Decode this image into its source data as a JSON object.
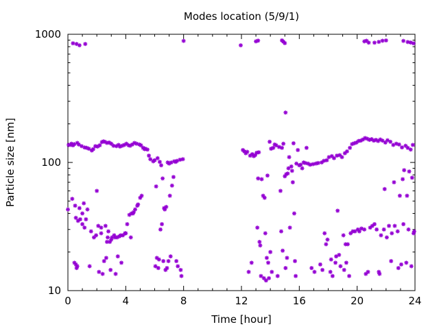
{
  "chart_data": {
    "type": "scatter",
    "title": "Modes location (5/9/1)",
    "xlabel": "Time [hour]",
    "ylabel": "Particle size [nm]",
    "xlim": [
      0,
      24
    ],
    "ylim": [
      10,
      1000
    ],
    "yscale": "log",
    "grid": false,
    "legend": "none",
    "x_ticks": [
      0,
      4,
      8,
      12,
      16,
      20,
      24
    ],
    "y_ticks": [
      10,
      100,
      1000
    ],
    "x_tick_labels": [
      "0",
      "4",
      "8",
      "12",
      "16",
      "20",
      "24"
    ],
    "y_tick_labels": [
      "10",
      "100",
      "1000"
    ],
    "marker_color": "#9400d3",
    "points": [
      [
        0.0,
        43
      ],
      [
        0.05,
        137
      ],
      [
        0.15,
        137
      ],
      [
        0.25,
        140
      ],
      [
        0.3,
        52
      ],
      [
        0.35,
        136
      ],
      [
        0.45,
        139
      ],
      [
        0.45,
        16.5
      ],
      [
        0.5,
        46
      ],
      [
        0.55,
        37
      ],
      [
        0.55,
        16
      ],
      [
        0.6,
        15
      ],
      [
        0.65,
        142
      ],
      [
        0.65,
        15.5
      ],
      [
        0.7,
        35
      ],
      [
        0.75,
        138
      ],
      [
        0.8,
        44
      ],
      [
        0.85,
        36
      ],
      [
        0.95,
        134
      ],
      [
        1.0,
        40
      ],
      [
        1.0,
        33
      ],
      [
        1.1,
        48
      ],
      [
        1.15,
        131
      ],
      [
        1.15,
        31
      ],
      [
        1.25,
        36
      ],
      [
        1.3,
        130
      ],
      [
        1.35,
        43
      ],
      [
        1.45,
        128
      ],
      [
        1.5,
        15.5
      ],
      [
        1.6,
        29
      ],
      [
        1.65,
        124
      ],
      [
        1.75,
        127
      ],
      [
        1.8,
        26
      ],
      [
        1.9,
        134
      ],
      [
        1.95,
        27
      ],
      [
        2.0,
        60
      ],
      [
        2.05,
        133
      ],
      [
        2.1,
        32
      ],
      [
        2.15,
        14
      ],
      [
        2.2,
        136
      ],
      [
        2.3,
        31
      ],
      [
        2.3,
        28
      ],
      [
        2.35,
        144
      ],
      [
        2.4,
        13.5
      ],
      [
        2.45,
        146
      ],
      [
        2.5,
        17
      ],
      [
        2.55,
        145
      ],
      [
        2.6,
        32
      ],
      [
        2.65,
        18
      ],
      [
        2.7,
        142
      ],
      [
        2.7,
        24
      ],
      [
        2.75,
        26
      ],
      [
        2.8,
        29
      ],
      [
        2.85,
        143
      ],
      [
        2.9,
        24
      ],
      [
        2.95,
        14.5
      ],
      [
        3.0,
        140
      ],
      [
        3.0,
        25
      ],
      [
        3.05,
        26
      ],
      [
        3.15,
        135
      ],
      [
        3.2,
        27
      ],
      [
        3.25,
        26
      ],
      [
        3.3,
        13.5
      ],
      [
        3.35,
        134
      ],
      [
        3.4,
        26
      ],
      [
        3.45,
        18.5
      ],
      [
        3.5,
        137
      ],
      [
        3.55,
        26.5
      ],
      [
        3.6,
        133
      ],
      [
        3.65,
        27
      ],
      [
        3.7,
        16.5
      ],
      [
        3.75,
        135
      ],
      [
        3.8,
        27
      ],
      [
        3.9,
        137
      ],
      [
        3.95,
        28
      ],
      [
        4.0,
        28
      ],
      [
        4.05,
        140
      ],
      [
        4.1,
        33
      ],
      [
        4.2,
        136
      ],
      [
        4.25,
        39
      ],
      [
        4.3,
        135
      ],
      [
        4.35,
        26
      ],
      [
        4.4,
        40
      ],
      [
        4.45,
        138
      ],
      [
        4.5,
        40
      ],
      [
        4.55,
        41
      ],
      [
        4.6,
        142
      ],
      [
        4.65,
        43
      ],
      [
        4.75,
        140
      ],
      [
        4.8,
        46
      ],
      [
        4.85,
        47
      ],
      [
        4.95,
        138
      ],
      [
        5.0,
        53
      ],
      [
        5.05,
        136
      ],
      [
        5.1,
        55
      ],
      [
        5.2,
        130
      ],
      [
        5.3,
        127
      ],
      [
        5.35,
        128
      ],
      [
        5.5,
        126
      ],
      [
        5.6,
        113
      ],
      [
        5.7,
        106
      ],
      [
        5.9,
        102
      ],
      [
        6.0,
        104
      ],
      [
        6.05,
        15.5
      ],
      [
        6.1,
        65
      ],
      [
        6.15,
        18
      ],
      [
        6.2,
        108
      ],
      [
        6.25,
        15
      ],
      [
        6.3,
        17.5
      ],
      [
        6.35,
        101
      ],
      [
        6.4,
        30
      ],
      [
        6.45,
        95
      ],
      [
        6.5,
        33
      ],
      [
        6.55,
        75
      ],
      [
        6.6,
        17
      ],
      [
        6.65,
        44
      ],
      [
        6.7,
        43
      ],
      [
        6.75,
        14.5
      ],
      [
        6.8,
        45
      ],
      [
        6.85,
        15
      ],
      [
        6.9,
        100
      ],
      [
        6.95,
        17
      ],
      [
        7.0,
        98
      ],
      [
        7.05,
        55
      ],
      [
        7.1,
        18.5
      ],
      [
        7.15,
        100
      ],
      [
        7.2,
        66
      ],
      [
        7.3,
        77
      ],
      [
        7.35,
        102
      ],
      [
        7.45,
        101
      ],
      [
        7.5,
        17
      ],
      [
        7.55,
        103
      ],
      [
        7.6,
        15.5
      ],
      [
        7.75,
        105
      ],
      [
        7.8,
        14.5
      ],
      [
        7.85,
        13
      ],
      [
        7.95,
        106
      ],
      [
        8.0,
        888
      ],
      [
        0.35,
        850
      ],
      [
        0.6,
        840
      ],
      [
        0.8,
        820
      ],
      [
        1.2,
        840
      ],
      [
        11.95,
        820
      ],
      [
        12.1,
        125
      ],
      [
        12.2,
        122
      ],
      [
        12.3,
        118
      ],
      [
        12.4,
        121
      ],
      [
        12.5,
        14
      ],
      [
        12.6,
        113
      ],
      [
        12.7,
        16.5
      ],
      [
        12.75,
        116
      ],
      [
        12.85,
        112
      ],
      [
        12.95,
        114
      ],
      [
        13.05,
        119
      ],
      [
        13.1,
        31
      ],
      [
        13.15,
        75
      ],
      [
        13.2,
        120
      ],
      [
        13.25,
        24
      ],
      [
        13.3,
        22.5
      ],
      [
        13.35,
        13
      ],
      [
        13.4,
        74
      ],
      [
        13.5,
        55
      ],
      [
        13.55,
        12.5
      ],
      [
        13.6,
        53
      ],
      [
        13.65,
        28
      ],
      [
        13.7,
        12
      ],
      [
        13.75,
        18
      ],
      [
        13.8,
        79
      ],
      [
        13.85,
        16.5
      ],
      [
        13.9,
        12.5
      ],
      [
        13.95,
        145
      ],
      [
        14.0,
        20
      ],
      [
        14.05,
        128
      ],
      [
        14.1,
        14
      ],
      [
        14.2,
        130
      ],
      [
        14.3,
        138
      ],
      [
        14.4,
        136
      ],
      [
        14.5,
        13
      ],
      [
        14.6,
        132
      ],
      [
        14.7,
        60
      ],
      [
        14.75,
        29
      ],
      [
        14.8,
        130
      ],
      [
        14.85,
        20.5
      ],
      [
        14.9,
        140
      ],
      [
        15.0,
        78
      ],
      [
        15.05,
        15
      ],
      [
        15.1,
        81
      ],
      [
        15.15,
        18
      ],
      [
        15.2,
        82
      ],
      [
        15.25,
        90
      ],
      [
        15.3,
        110
      ],
      [
        15.35,
        31
      ],
      [
        15.45,
        93
      ],
      [
        15.5,
        86
      ],
      [
        15.55,
        70
      ],
      [
        15.6,
        141
      ],
      [
        15.65,
        40
      ],
      [
        15.7,
        17
      ],
      [
        15.75,
        13
      ],
      [
        15.8,
        98
      ],
      [
        15.9,
        125
      ],
      [
        16.0,
        95
      ],
      [
        16.1,
        96
      ],
      [
        16.2,
        90
      ],
      [
        16.3,
        100
      ],
      [
        16.4,
        99
      ],
      [
        16.5,
        130
      ],
      [
        16.6,
        98
      ],
      [
        16.75,
        96
      ],
      [
        16.85,
        15
      ],
      [
        16.95,
        97
      ],
      [
        17.05,
        14
      ],
      [
        17.15,
        98
      ],
      [
        17.3,
        99
      ],
      [
        17.45,
        16
      ],
      [
        17.55,
        100
      ],
      [
        17.6,
        14.5
      ],
      [
        17.7,
        103
      ],
      [
        17.75,
        28
      ],
      [
        17.85,
        23
      ],
      [
        17.9,
        104
      ],
      [
        17.95,
        25
      ],
      [
        18.05,
        110
      ],
      [
        18.15,
        14
      ],
      [
        18.2,
        17.5
      ],
      [
        18.25,
        112
      ],
      [
        18.3,
        13
      ],
      [
        18.4,
        108
      ],
      [
        18.5,
        16.5
      ],
      [
        18.55,
        18.5
      ],
      [
        18.6,
        113
      ],
      [
        18.65,
        42
      ],
      [
        18.75,
        19
      ],
      [
        18.8,
        114
      ],
      [
        18.85,
        15.5
      ],
      [
        18.95,
        110
      ],
      [
        19.05,
        27
      ],
      [
        19.1,
        14.5
      ],
      [
        19.15,
        118
      ],
      [
        19.2,
        23
      ],
      [
        19.25,
        16.5
      ],
      [
        19.3,
        122
      ],
      [
        19.35,
        23
      ],
      [
        19.45,
        13
      ],
      [
        19.5,
        130
      ],
      [
        19.55,
        28
      ],
      [
        19.65,
        139
      ],
      [
        19.7,
        29
      ],
      [
        19.8,
        141
      ],
      [
        19.85,
        29
      ],
      [
        19.95,
        143
      ],
      [
        20.05,
        30
      ],
      [
        20.1,
        147
      ],
      [
        20.15,
        29
      ],
      [
        20.25,
        148
      ],
      [
        20.3,
        30.5
      ],
      [
        20.4,
        151
      ],
      [
        20.5,
        30
      ],
      [
        20.55,
        155
      ],
      [
        20.6,
        13.5
      ],
      [
        20.7,
        153
      ],
      [
        20.75,
        14
      ],
      [
        20.85,
        150
      ],
      [
        20.9,
        31
      ],
      [
        21.0,
        152
      ],
      [
        21.05,
        32
      ],
      [
        21.15,
        148
      ],
      [
        21.2,
        33
      ],
      [
        21.3,
        150
      ],
      [
        21.35,
        30
      ],
      [
        21.45,
        147
      ],
      [
        21.5,
        14
      ],
      [
        21.55,
        13.5
      ],
      [
        21.6,
        151
      ],
      [
        21.65,
        27
      ],
      [
        21.75,
        148
      ],
      [
        21.85,
        30
      ],
      [
        21.9,
        62
      ],
      [
        21.95,
        143
      ],
      [
        22.05,
        26
      ],
      [
        22.1,
        149
      ],
      [
        22.2,
        32
      ],
      [
        22.3,
        145
      ],
      [
        22.35,
        17
      ],
      [
        22.4,
        28
      ],
      [
        22.5,
        137
      ],
      [
        22.55,
        70
      ],
      [
        22.6,
        32
      ],
      [
        22.7,
        140
      ],
      [
        22.8,
        29
      ],
      [
        22.85,
        15
      ],
      [
        22.9,
        138
      ],
      [
        22.95,
        55
      ],
      [
        23.05,
        16
      ],
      [
        23.1,
        131
      ],
      [
        23.15,
        74
      ],
      [
        23.2,
        33
      ],
      [
        23.25,
        87
      ],
      [
        23.35,
        135
      ],
      [
        23.4,
        16.5
      ],
      [
        23.45,
        55
      ],
      [
        23.5,
        130
      ],
      [
        23.55,
        30
      ],
      [
        23.6,
        85
      ],
      [
        23.7,
        126
      ],
      [
        23.75,
        15.5
      ],
      [
        23.8,
        76
      ],
      [
        23.85,
        137
      ],
      [
        23.9,
        28
      ],
      [
        23.95,
        29
      ],
      [
        13.0,
        880
      ],
      [
        13.15,
        892
      ],
      [
        14.8,
        896
      ],
      [
        14.9,
        876
      ],
      [
        15.0,
        853
      ],
      [
        15.05,
        245
      ],
      [
        20.5,
        880
      ],
      [
        20.65,
        890
      ],
      [
        20.8,
        860
      ],
      [
        21.2,
        860
      ],
      [
        21.5,
        872
      ],
      [
        21.75,
        890
      ],
      [
        22.0,
        895
      ],
      [
        23.2,
        888
      ],
      [
        23.5,
        870
      ],
      [
        23.7,
        862
      ],
      [
        23.9,
        850
      ]
    ]
  }
}
